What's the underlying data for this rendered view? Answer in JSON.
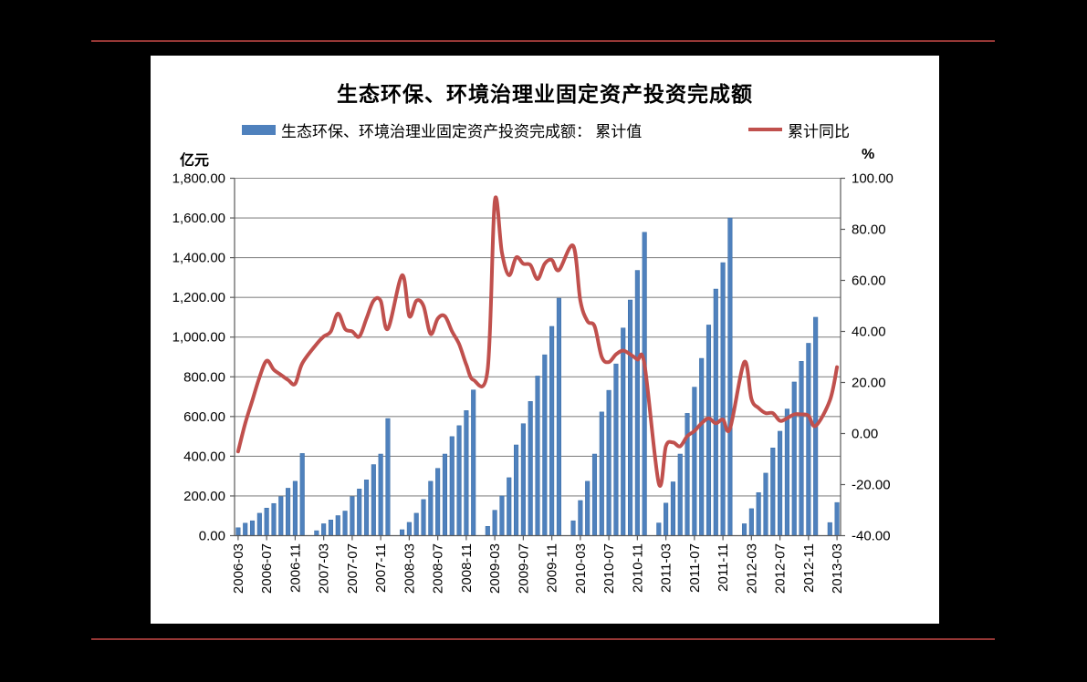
{
  "page": {
    "background_color": "#000000",
    "panel_color": "#ffffff",
    "separator_color": "#953735"
  },
  "chart": {
    "title": "生态环保、环境治理业固定资产投资完成额",
    "left_axis": {
      "unit": "亿元",
      "tick_labels": [
        "0.00",
        "200.00",
        "400.00",
        "600.00",
        "800.00",
        "1,000.00",
        "1,200.00",
        "1,400.00",
        "1,600.00",
        "1,800.00"
      ]
    },
    "right_axis": {
      "unit": "%",
      "tick_labels": [
        "-40.00",
        "-20.00",
        "0.00",
        "20.00",
        "40.00",
        "60.00",
        "80.00",
        "100.00"
      ]
    },
    "x_tick_labels": [
      "2006-03",
      "2006-07",
      "2006-11",
      "2007-03",
      "2007-07",
      "2007-11",
      "2008-03",
      "2008-07",
      "2008-11",
      "2009-03",
      "2009-07",
      "2009-11",
      "2010-03",
      "2010-07",
      "2010-11",
      "2011-03",
      "2011-07",
      "2011-11",
      "2012-03",
      "2012-07",
      "2012-11",
      "2013-03"
    ],
    "legend": [
      {
        "label": "生态环保、环境治理业固定资产投资完成额： 累计值",
        "type": "bar",
        "color": "#4F81BD"
      },
      {
        "label": "累计同比",
        "type": "line",
        "color": "#C0504D"
      }
    ]
  },
  "chart_data": {
    "type": "combo-bar-line",
    "title": "生态环保、环境治理业固定资产投资完成额",
    "x": [
      "2006-03",
      "2006-04",
      "2006-05",
      "2006-06",
      "2006-07",
      "2006-08",
      "2006-09",
      "2006-10",
      "2006-11",
      "2006-12",
      "2007-02",
      "2007-03",
      "2007-04",
      "2007-05",
      "2007-06",
      "2007-07",
      "2007-08",
      "2007-09",
      "2007-10",
      "2007-11",
      "2007-12",
      "2008-02",
      "2008-03",
      "2008-04",
      "2008-05",
      "2008-06",
      "2008-07",
      "2008-08",
      "2008-09",
      "2008-10",
      "2008-11",
      "2008-12",
      "2009-02",
      "2009-03",
      "2009-04",
      "2009-05",
      "2009-06",
      "2009-07",
      "2009-08",
      "2009-09",
      "2009-10",
      "2009-11",
      "2009-12",
      "2010-02",
      "2010-03",
      "2010-04",
      "2010-05",
      "2010-06",
      "2010-07",
      "2010-08",
      "2010-09",
      "2010-10",
      "2010-11",
      "2010-12",
      "2011-02",
      "2011-03",
      "2011-04",
      "2011-05",
      "2011-06",
      "2011-07",
      "2011-08",
      "2011-09",
      "2011-10",
      "2011-11",
      "2011-12",
      "2012-02",
      "2012-03",
      "2012-04",
      "2012-05",
      "2012-06",
      "2012-07",
      "2012-08",
      "2012-09",
      "2012-10",
      "2012-11",
      "2012-12",
      "2013-02",
      "2013-03"
    ],
    "series": [
      {
        "name": "生态环保、环境治理业固定资产投资完成额：累计值",
        "type": "bar",
        "axis": "left",
        "unit": "亿元",
        "color": "#4F81BD",
        "values": [
          40,
          63,
          75,
          113,
          139,
          162,
          197,
          239,
          274,
          414,
          25,
          60,
          79,
          101,
          124,
          197,
          235,
          281,
          358,
          411,
          590,
          30,
          67,
          113,
          182,
          274,
          339,
          411,
          499,
          554,
          630,
          734,
          47,
          128,
          200,
          292,
          457,
          564,
          676,
          804,
          911,
          1054,
          1196,
          75,
          177,
          274,
          411,
          623,
          732,
          865,
          1046,
          1187,
          1336,
          1528,
          64,
          164,
          271,
          411,
          616,
          748,
          893,
          1061,
          1242,
          1375,
          1600,
          60,
          136,
          217,
          315,
          442,
          526,
          638,
          774,
          878,
          969,
          1100,
          66,
          167
        ]
      },
      {
        "name": "累计同比",
        "type": "line",
        "axis": "right",
        "unit": "%",
        "color": "#C0504D",
        "values": [
          -7,
          4,
          13,
          22,
          28.5,
          25,
          23,
          21,
          19.5,
          27.5,
          35,
          38,
          40,
          47,
          41,
          40,
          38,
          45,
          52,
          52,
          41,
          62,
          46,
          52,
          50,
          39,
          45,
          46,
          40,
          35,
          27,
          21,
          25,
          91,
          71,
          62,
          69,
          66.5,
          66,
          60.5,
          66.5,
          68,
          64,
          73.5,
          52,
          44,
          42,
          30,
          28,
          31,
          32.5,
          31,
          29,
          27,
          -19.5,
          -5,
          -3.5,
          -5,
          -1,
          1,
          4,
          6,
          4,
          5.5,
          2,
          28,
          13.5,
          10,
          8,
          8,
          5,
          6,
          7.5,
          7.5,
          7,
          3,
          13,
          26
        ]
      }
    ],
    "left_ylim": [
      0,
      1800
    ],
    "left_step": 200,
    "right_ylim": [
      -40,
      100
    ],
    "right_step": 20,
    "grid": true,
    "legend_position": "top"
  }
}
